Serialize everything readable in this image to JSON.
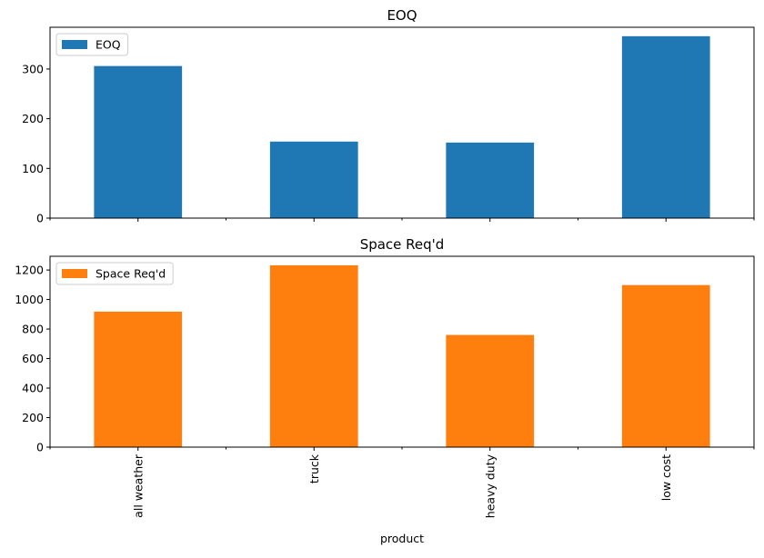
{
  "chart_data": [
    {
      "type": "bar",
      "title": "EOQ",
      "categories": [
        "all weather",
        "truck",
        "heavy duty",
        "low cost"
      ],
      "series": [
        {
          "name": "EOQ",
          "values": [
            306,
            154,
            152,
            366
          ],
          "color": "#1f77b4"
        }
      ],
      "ylim": [
        0,
        384
      ],
      "yticks": [
        0,
        100,
        200,
        300
      ],
      "xlabel": "",
      "ylabel": "",
      "legend": "top-left",
      "grid": false
    },
    {
      "type": "bar",
      "title": "Space Req'd",
      "categories": [
        "all weather",
        "truck",
        "heavy duty",
        "low cost"
      ],
      "series": [
        {
          "name": "Space Req'd",
          "values": [
            918,
            1232,
            760,
            1098
          ],
          "color": "#ff7f0e"
        }
      ],
      "ylim": [
        0,
        1293
      ],
      "yticks": [
        0,
        200,
        400,
        600,
        800,
        1000,
        1200
      ],
      "xlabel": "product",
      "ylabel": "",
      "legend": "top-left",
      "grid": false
    }
  ]
}
